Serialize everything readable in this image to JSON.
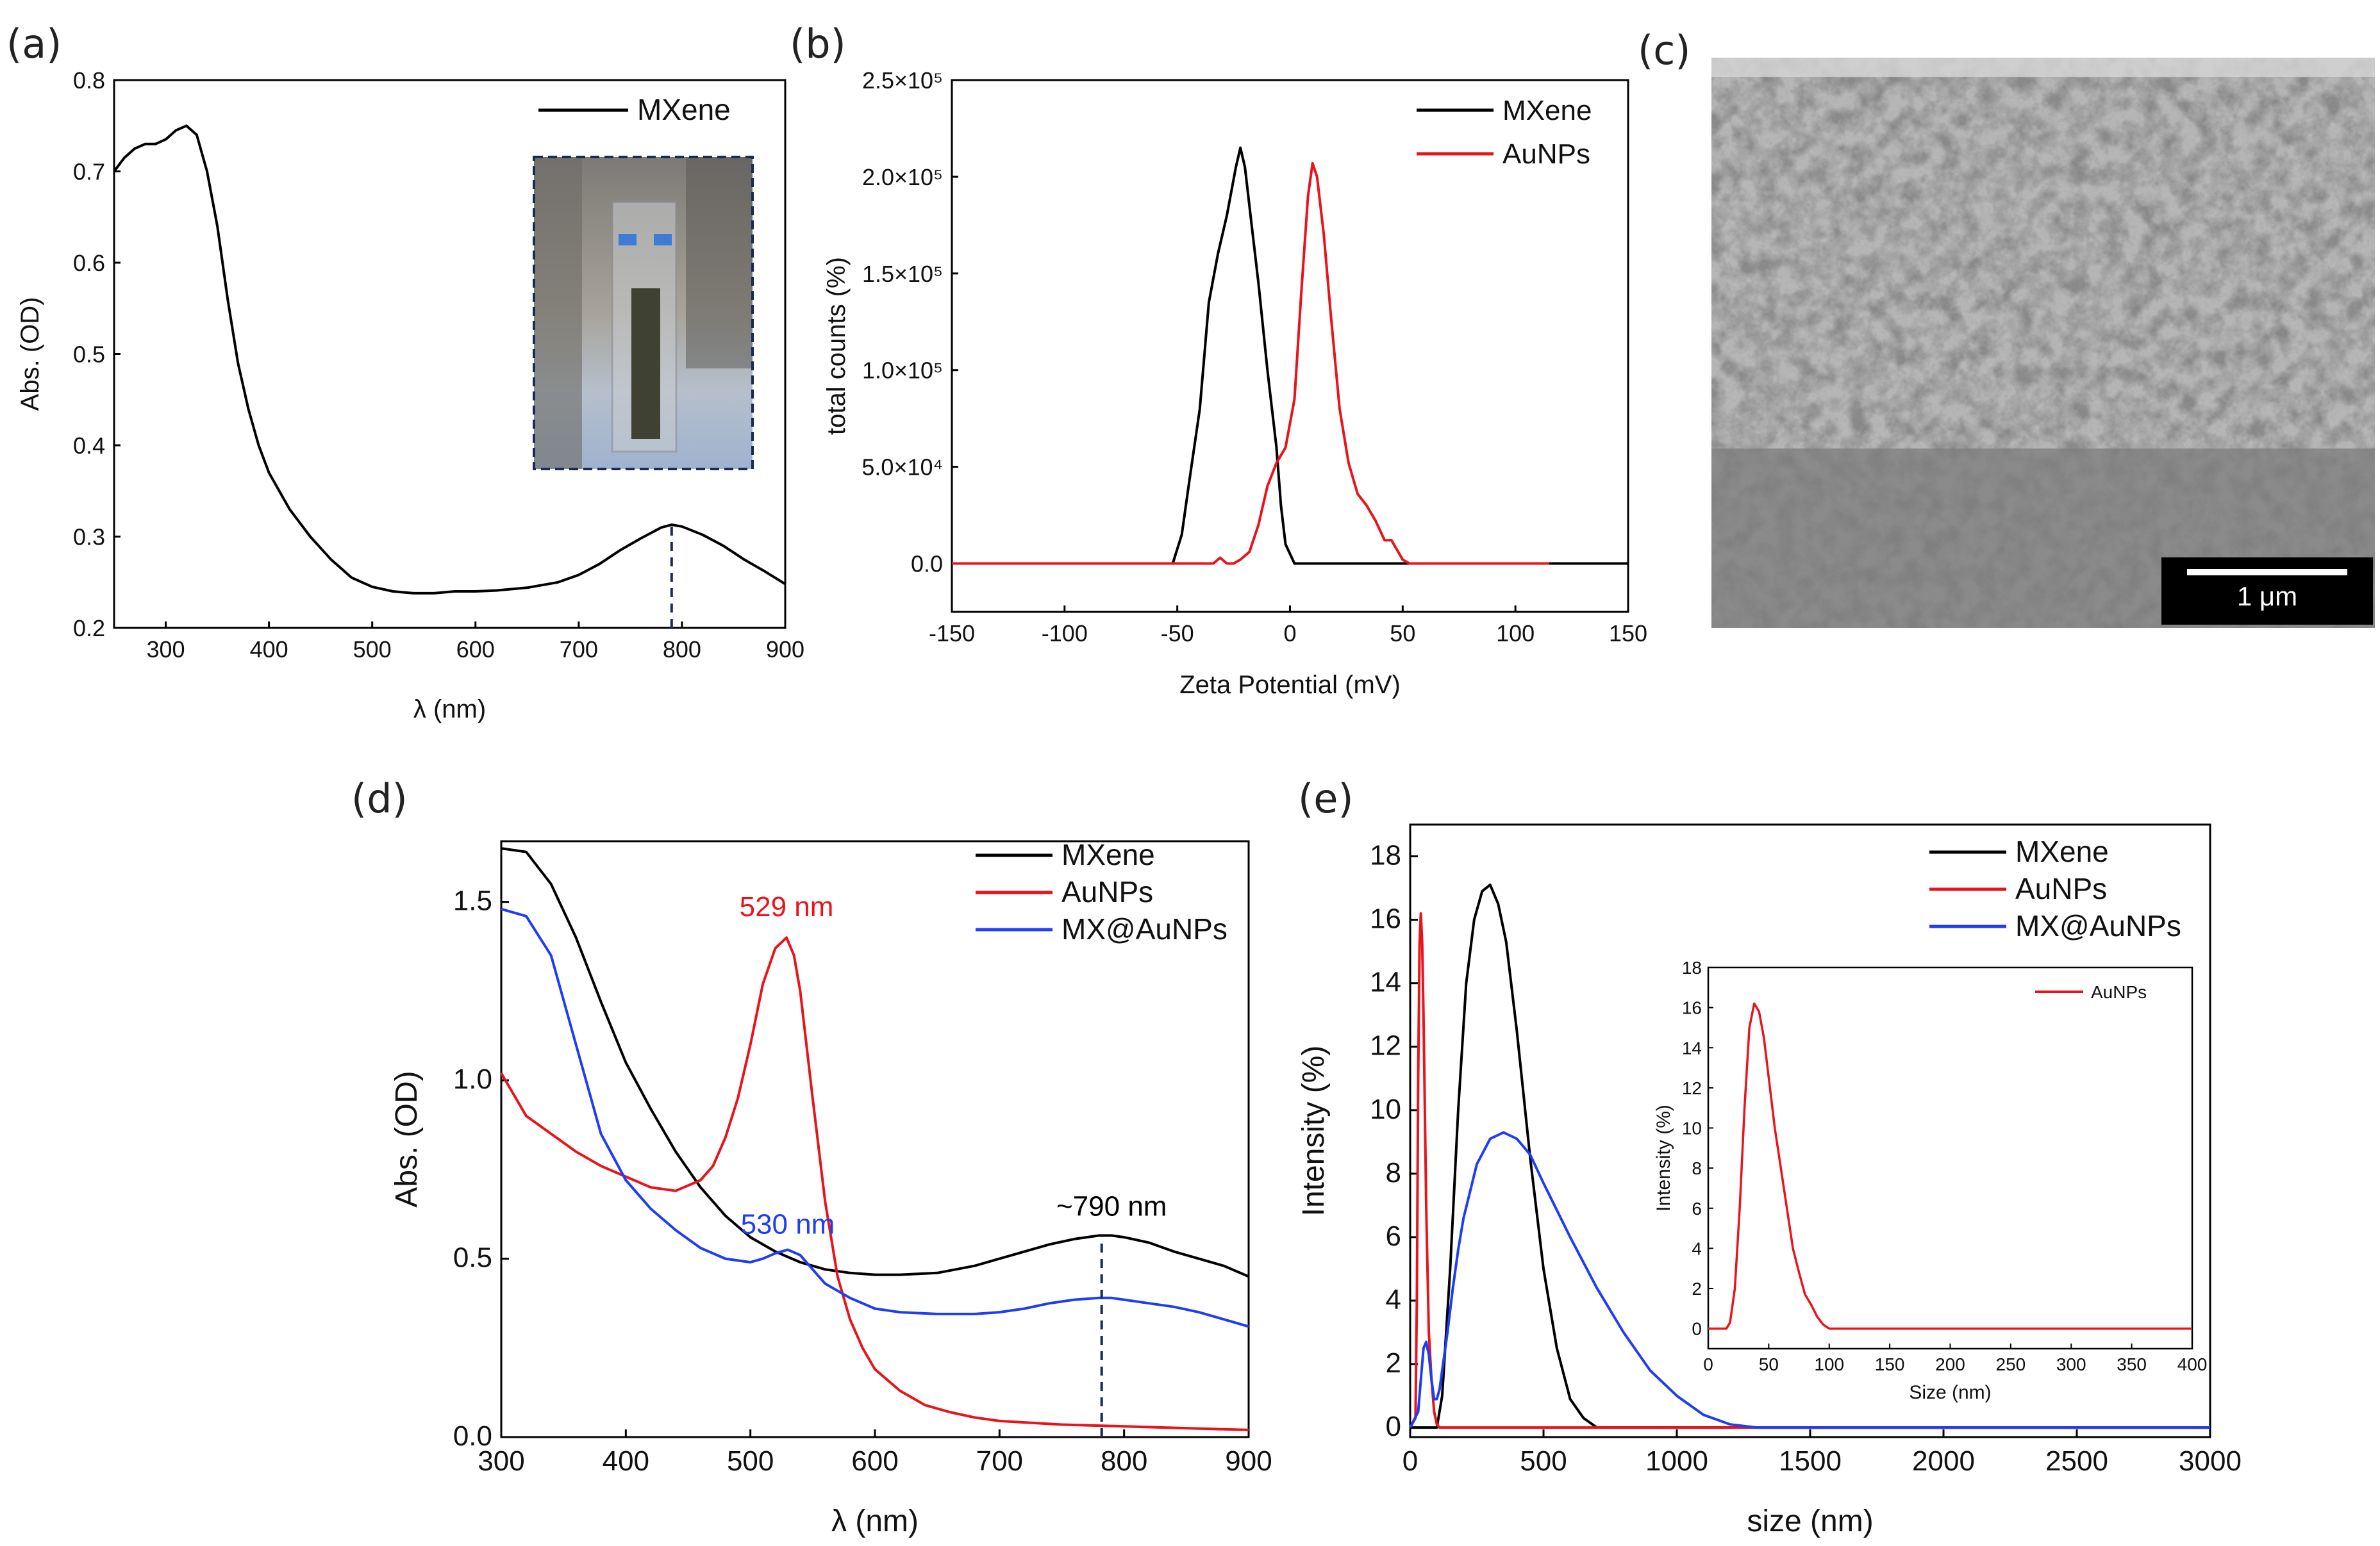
{
  "figure": {
    "panel_labels": [
      "(a)",
      "(b)",
      "(c)",
      "(d)",
      "(e)"
    ],
    "sem": {
      "scalebar_label": "1 μm"
    }
  },
  "colors": {
    "mxene": "#000000",
    "aunps": "#e8141b",
    "mx_aunps": "#1f3df2",
    "dashed_marker": "#1a2b55"
  },
  "chart_data": [
    {
      "id": "a",
      "type": "line",
      "title": "",
      "xlabel": "λ (nm)",
      "ylabel": "Abs. (OD)",
      "xlim": [
        250,
        900
      ],
      "ylim": [
        0.2,
        0.8
      ],
      "xticks": [
        300,
        400,
        500,
        600,
        700,
        800,
        900
      ],
      "yticks": [
        0.2,
        0.3,
        0.4,
        0.5,
        0.6,
        0.7,
        0.8
      ],
      "legend": [
        "MXene"
      ],
      "legend_position": "top-right",
      "marker_line_x": 790,
      "inset": "photo of cuvette with MXene dispersion",
      "series": [
        {
          "name": "MXene",
          "color": "#000000",
          "x": [
            250,
            260,
            270,
            280,
            290,
            300,
            310,
            320,
            330,
            340,
            350,
            360,
            370,
            380,
            390,
            400,
            420,
            440,
            460,
            480,
            500,
            520,
            540,
            560,
            580,
            600,
            620,
            650,
            680,
            700,
            720,
            740,
            760,
            780,
            790,
            800,
            820,
            840,
            860,
            880,
            900
          ],
          "y": [
            0.7,
            0.715,
            0.725,
            0.73,
            0.73,
            0.735,
            0.745,
            0.75,
            0.74,
            0.7,
            0.64,
            0.56,
            0.49,
            0.44,
            0.4,
            0.37,
            0.33,
            0.3,
            0.275,
            0.255,
            0.245,
            0.24,
            0.238,
            0.238,
            0.24,
            0.24,
            0.241,
            0.244,
            0.25,
            0.258,
            0.27,
            0.285,
            0.298,
            0.31,
            0.313,
            0.311,
            0.302,
            0.29,
            0.275,
            0.262,
            0.248
          ]
        }
      ]
    },
    {
      "id": "b",
      "type": "line",
      "title": "",
      "xlabel": "Zeta Potential (mV)",
      "ylabel": "total counts (%)",
      "xlim": [
        -150,
        150
      ],
      "ylim": [
        -25000,
        250000
      ],
      "xticks": [
        -150,
        -100,
        -50,
        0,
        50,
        100,
        150
      ],
      "yticks": [
        0,
        50000,
        100000,
        150000,
        200000,
        250000
      ],
      "ytick_labels": [
        "0.0",
        "5.0×10⁴",
        "1.0×10⁵",
        "1.5×10⁵",
        "2.0×10⁵",
        "2.5×10⁵"
      ],
      "legend": [
        "MXene",
        "AuNPs"
      ],
      "legend_position": "top-right",
      "series": [
        {
          "name": "MXene",
          "color": "#000000",
          "x": [
            -150,
            -52,
            -48,
            -45,
            -40,
            -36,
            -32,
            -28,
            -24,
            -22,
            -20,
            -17,
            -14,
            -10,
            -6,
            -4,
            -2,
            2,
            50,
            150
          ],
          "y": [
            0,
            0,
            15000,
            40000,
            80000,
            135000,
            160000,
            180000,
            205000,
            215000,
            205000,
            175000,
            145000,
            100000,
            60000,
            30000,
            10000,
            0,
            0,
            0
          ]
        },
        {
          "name": "AuNPs",
          "color": "#e8141b",
          "x": [
            -150,
            -34,
            -31,
            -28,
            -25,
            -22,
            -18,
            -14,
            -10,
            -6,
            -2,
            2,
            5,
            8,
            10,
            12,
            15,
            18,
            22,
            26,
            30,
            34,
            38,
            42,
            45,
            48,
            50,
            53,
            115
          ],
          "y": [
            0,
            0,
            3000,
            0,
            0,
            2000,
            6000,
            20000,
            40000,
            52000,
            60000,
            85000,
            140000,
            190000,
            207000,
            200000,
            170000,
            130000,
            80000,
            52000,
            36000,
            30000,
            22000,
            12000,
            12000,
            6000,
            2000,
            0,
            0
          ]
        }
      ]
    },
    {
      "id": "d",
      "type": "line",
      "title": "",
      "xlabel": "λ (nm)",
      "ylabel": "Abs. (OD)",
      "xlim": [
        300,
        900
      ],
      "ylim": [
        0.0,
        1.67
      ],
      "xticks": [
        300,
        400,
        500,
        600,
        700,
        800,
        900
      ],
      "yticks": [
        0.0,
        0.5,
        1.0,
        1.5
      ],
      "legend": [
        "MXene",
        "AuNPs",
        "MX@AuNPs"
      ],
      "legend_position": "top-right",
      "marker_line_x": 782,
      "annotations": [
        {
          "text": "529 nm",
          "color": "#e8141b",
          "x": 529,
          "y": 1.46
        },
        {
          "text": "530 nm",
          "color": "#1f3df2",
          "x": 530,
          "y": 0.57
        },
        {
          "text": "~790 nm",
          "color": "#000000",
          "x": 790,
          "y": 0.62
        }
      ],
      "series": [
        {
          "name": "MXene",
          "color": "#000000",
          "x": [
            300,
            320,
            340,
            360,
            380,
            400,
            420,
            440,
            460,
            480,
            500,
            520,
            540,
            560,
            580,
            600,
            620,
            650,
            680,
            700,
            720,
            740,
            760,
            780,
            790,
            800,
            820,
            840,
            860,
            880,
            900
          ],
          "y": [
            1.65,
            1.64,
            1.55,
            1.4,
            1.22,
            1.05,
            0.92,
            0.8,
            0.7,
            0.62,
            0.56,
            0.52,
            0.49,
            0.47,
            0.46,
            0.455,
            0.455,
            0.46,
            0.48,
            0.5,
            0.52,
            0.54,
            0.555,
            0.565,
            0.565,
            0.56,
            0.545,
            0.52,
            0.5,
            0.48,
            0.45
          ]
        },
        {
          "name": "AuNPs",
          "color": "#e8141b",
          "x": [
            300,
            320,
            340,
            360,
            380,
            400,
            420,
            440,
            460,
            470,
            480,
            490,
            500,
            510,
            520,
            529,
            535,
            540,
            550,
            560,
            570,
            580,
            590,
            600,
            620,
            640,
            660,
            680,
            700,
            750,
            800,
            850,
            900
          ],
          "y": [
            1.02,
            0.9,
            0.85,
            0.8,
            0.76,
            0.73,
            0.7,
            0.69,
            0.72,
            0.76,
            0.84,
            0.95,
            1.1,
            1.27,
            1.37,
            1.4,
            1.35,
            1.25,
            0.95,
            0.66,
            0.45,
            0.33,
            0.25,
            0.19,
            0.13,
            0.09,
            0.07,
            0.055,
            0.045,
            0.035,
            0.03,
            0.025,
            0.02
          ]
        },
        {
          "name": "MX@AuNPs",
          "color": "#1f3df2",
          "x": [
            300,
            320,
            340,
            360,
            380,
            400,
            420,
            440,
            460,
            480,
            500,
            510,
            520,
            530,
            540,
            550,
            560,
            580,
            600,
            620,
            650,
            680,
            700,
            720,
            740,
            760,
            780,
            790,
            800,
            820,
            840,
            860,
            880,
            900
          ],
          "y": [
            1.48,
            1.46,
            1.35,
            1.1,
            0.85,
            0.72,
            0.64,
            0.58,
            0.53,
            0.5,
            0.49,
            0.5,
            0.515,
            0.525,
            0.51,
            0.47,
            0.43,
            0.39,
            0.36,
            0.35,
            0.345,
            0.345,
            0.35,
            0.36,
            0.375,
            0.385,
            0.39,
            0.39,
            0.385,
            0.375,
            0.365,
            0.35,
            0.33,
            0.31
          ]
        }
      ]
    },
    {
      "id": "e",
      "type": "line",
      "title": "",
      "xlabel": "size (nm)",
      "ylabel": "Intensity (%)",
      "xlim": [
        0,
        3000
      ],
      "ylim": [
        -0.3,
        19
      ],
      "xticks": [
        0,
        500,
        1000,
        1500,
        2000,
        2500,
        3000
      ],
      "yticks": [
        0,
        2,
        4,
        6,
        8,
        10,
        12,
        14,
        16,
        18
      ],
      "legend": [
        "MXene",
        "AuNPs",
        "MX@AuNPs"
      ],
      "legend_position": "top-right",
      "series": [
        {
          "name": "MXene",
          "color": "#000000",
          "x": [
            0,
            100,
            120,
            150,
            180,
            210,
            240,
            270,
            300,
            330,
            360,
            400,
            450,
            500,
            550,
            600,
            650,
            700,
            3000
          ],
          "y": [
            0,
            0,
            1.0,
            5.0,
            10.0,
            14.0,
            16.0,
            16.9,
            17.1,
            16.5,
            15.3,
            12.5,
            8.5,
            5.0,
            2.5,
            0.9,
            0.3,
            0,
            0
          ]
        },
        {
          "name": "AuNPs",
          "color": "#e8141b",
          "x": [
            0,
            20,
            25,
            30,
            35,
            40,
            45,
            50,
            55,
            60,
            65,
            70,
            80,
            90,
            100,
            110,
            3000
          ],
          "y": [
            0,
            0.3,
            4,
            11,
            15.2,
            16.2,
            15.3,
            13,
            10,
            7,
            5,
            3,
            1.5,
            0.5,
            0.1,
            0,
            0
          ]
        },
        {
          "name": "MX@AuNPs",
          "color": "#1f3df2",
          "x": [
            0,
            30,
            40,
            50,
            60,
            70,
            80,
            90,
            100,
            110,
            120,
            140,
            160,
            180,
            200,
            250,
            300,
            350,
            400,
            450,
            500,
            600,
            700,
            800,
            900,
            1000,
            1100,
            1200,
            1300,
            3000
          ],
          "y": [
            0,
            0.5,
            1.5,
            2.5,
            2.7,
            2.3,
            1.5,
            0.9,
            0.9,
            1.2,
            1.8,
            3.0,
            4.4,
            5.6,
            6.6,
            8.3,
            9.1,
            9.3,
            9.1,
            8.6,
            7.7,
            6.0,
            4.4,
            3.0,
            1.8,
            1.0,
            0.4,
            0.1,
            0,
            0
          ]
        }
      ],
      "inset": {
        "xlabel": "Size (nm)",
        "ylabel": "Intensity (%)",
        "xlim": [
          0,
          400
        ],
        "ylim": [
          -1,
          18
        ],
        "xticks": [
          0,
          50,
          100,
          150,
          200,
          250,
          300,
          350,
          400
        ],
        "yticks": [
          0,
          2,
          4,
          6,
          8,
          10,
          12,
          14,
          16,
          18
        ],
        "legend": [
          "AuNPs"
        ],
        "series": [
          {
            "name": "AuNPs",
            "color": "#e8141b",
            "x": [
              0,
              15,
              18,
              22,
              26,
              30,
              34,
              38,
              42,
              46,
              50,
              55,
              60,
              65,
              70,
              75,
              80,
              85,
              90,
              95,
              100,
              110,
              400
            ],
            "y": [
              0,
              0,
              0.3,
              2,
              6,
              11,
              15,
              16.2,
              15.8,
              14.5,
              12.5,
              10,
              8,
              6,
              4,
              2.8,
              1.7,
              1.2,
              0.6,
              0.2,
              0,
              0,
              0
            ]
          }
        ]
      }
    }
  ]
}
